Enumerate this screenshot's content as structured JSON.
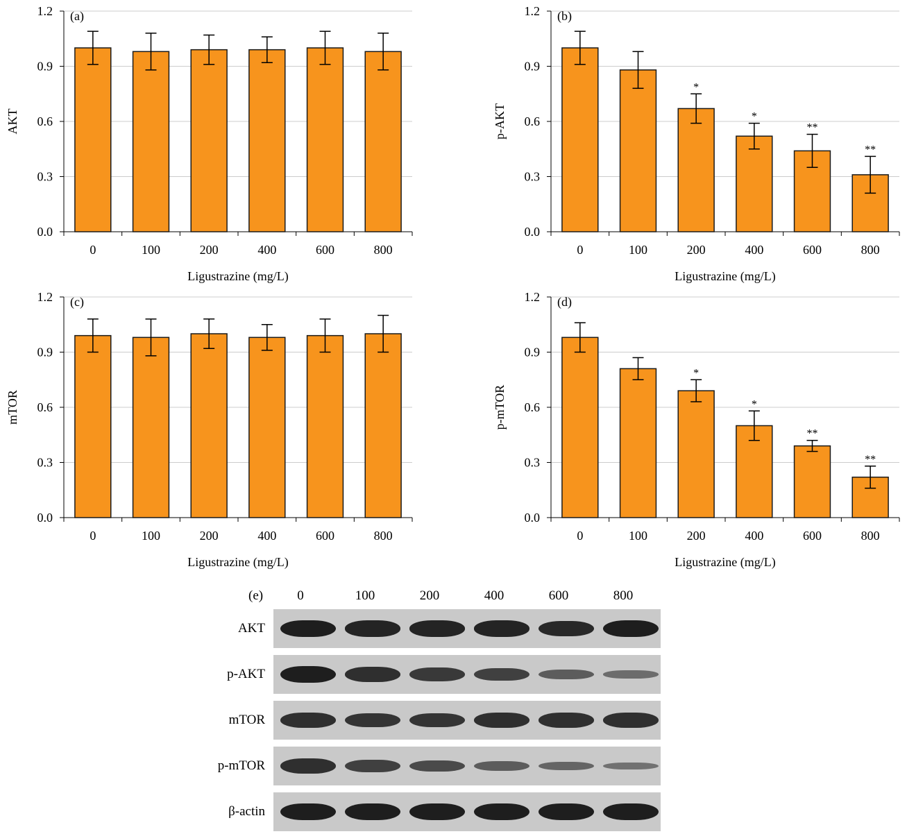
{
  "colors": {
    "bar": "#F7941D",
    "bar_stroke": "#1a1a1a",
    "grid": "#cccccc",
    "blot_bg": "#c9c9c9",
    "band": "#1e1e1e"
  },
  "chart_data": [
    {
      "type": "bar",
      "panel": "(a)",
      "categories": [
        "0",
        "100",
        "200",
        "400",
        "600",
        "800"
      ],
      "values": [
        1.0,
        0.98,
        0.99,
        0.99,
        1.0,
        0.98
      ],
      "errors": [
        0.09,
        0.1,
        0.08,
        0.07,
        0.09,
        0.1
      ],
      "annotations": [
        "",
        "",
        "",
        "",
        "",
        ""
      ],
      "ylabel": "AKT",
      "xlabel": "Ligustrazine (mg/L)",
      "ylim": [
        0,
        1.2
      ],
      "yticks": [
        "0.0",
        "0.3",
        "0.6",
        "0.9",
        "1.2"
      ],
      "grid": true
    },
    {
      "type": "bar",
      "panel": "(b)",
      "categories": [
        "0",
        "100",
        "200",
        "400",
        "600",
        "800"
      ],
      "values": [
        1.0,
        0.88,
        0.67,
        0.52,
        0.44,
        0.31
      ],
      "errors": [
        0.09,
        0.1,
        0.08,
        0.07,
        0.09,
        0.1
      ],
      "annotations": [
        "",
        "",
        "*",
        "*",
        "**",
        "**"
      ],
      "ylabel": "p-AKT",
      "xlabel": "Ligustrazine (mg/L)",
      "ylim": [
        0,
        1.2
      ],
      "yticks": [
        "0.0",
        "0.3",
        "0.6",
        "0.9",
        "1.2"
      ],
      "grid": true
    },
    {
      "type": "bar",
      "panel": "(c)",
      "categories": [
        "0",
        "100",
        "200",
        "400",
        "600",
        "800"
      ],
      "values": [
        0.99,
        0.98,
        1.0,
        0.98,
        0.99,
        1.0
      ],
      "errors": [
        0.09,
        0.1,
        0.08,
        0.07,
        0.09,
        0.1
      ],
      "annotations": [
        "",
        "",
        "",
        "",
        "",
        ""
      ],
      "ylabel": "mTOR",
      "xlabel": "Ligustrazine (mg/L)",
      "ylim": [
        0,
        1.2
      ],
      "yticks": [
        "0.0",
        "0.3",
        "0.6",
        "0.9",
        "1.2"
      ],
      "grid": true
    },
    {
      "type": "bar",
      "panel": "(d)",
      "categories": [
        "0",
        "100",
        "200",
        "400",
        "600",
        "800"
      ],
      "values": [
        0.98,
        0.81,
        0.69,
        0.5,
        0.39,
        0.22
      ],
      "errors": [
        0.08,
        0.06,
        0.06,
        0.08,
        0.03,
        0.06
      ],
      "annotations": [
        "",
        "",
        "*",
        "*",
        "**",
        "**"
      ],
      "ylabel": "p-mTOR",
      "xlabel": "Ligustrazine (mg/L)",
      "ylim": [
        0,
        1.2
      ],
      "yticks": [
        "0.0",
        "0.3",
        "0.6",
        "0.9",
        "1.2"
      ],
      "grid": true
    }
  ],
  "western_blot": {
    "panel": "(e)",
    "lanes": [
      "0",
      "100",
      "200",
      "400",
      "600",
      "800"
    ],
    "rows": [
      {
        "label": "AKT",
        "intensity": [
          1.0,
          0.95,
          0.95,
          0.95,
          0.9,
          1.0
        ]
      },
      {
        "label": "p-AKT",
        "intensity": [
          1.0,
          0.85,
          0.75,
          0.7,
          0.45,
          0.3
        ]
      },
      {
        "label": "mTOR",
        "intensity": [
          0.85,
          0.8,
          0.8,
          0.85,
          0.85,
          0.85
        ]
      },
      {
        "label": "p-mTOR",
        "intensity": [
          0.85,
          0.7,
          0.6,
          0.45,
          0.35,
          0.25
        ]
      },
      {
        "label": "β-actin",
        "intensity": [
          1.0,
          1.0,
          1.0,
          1.0,
          1.0,
          1.0
        ]
      }
    ]
  }
}
